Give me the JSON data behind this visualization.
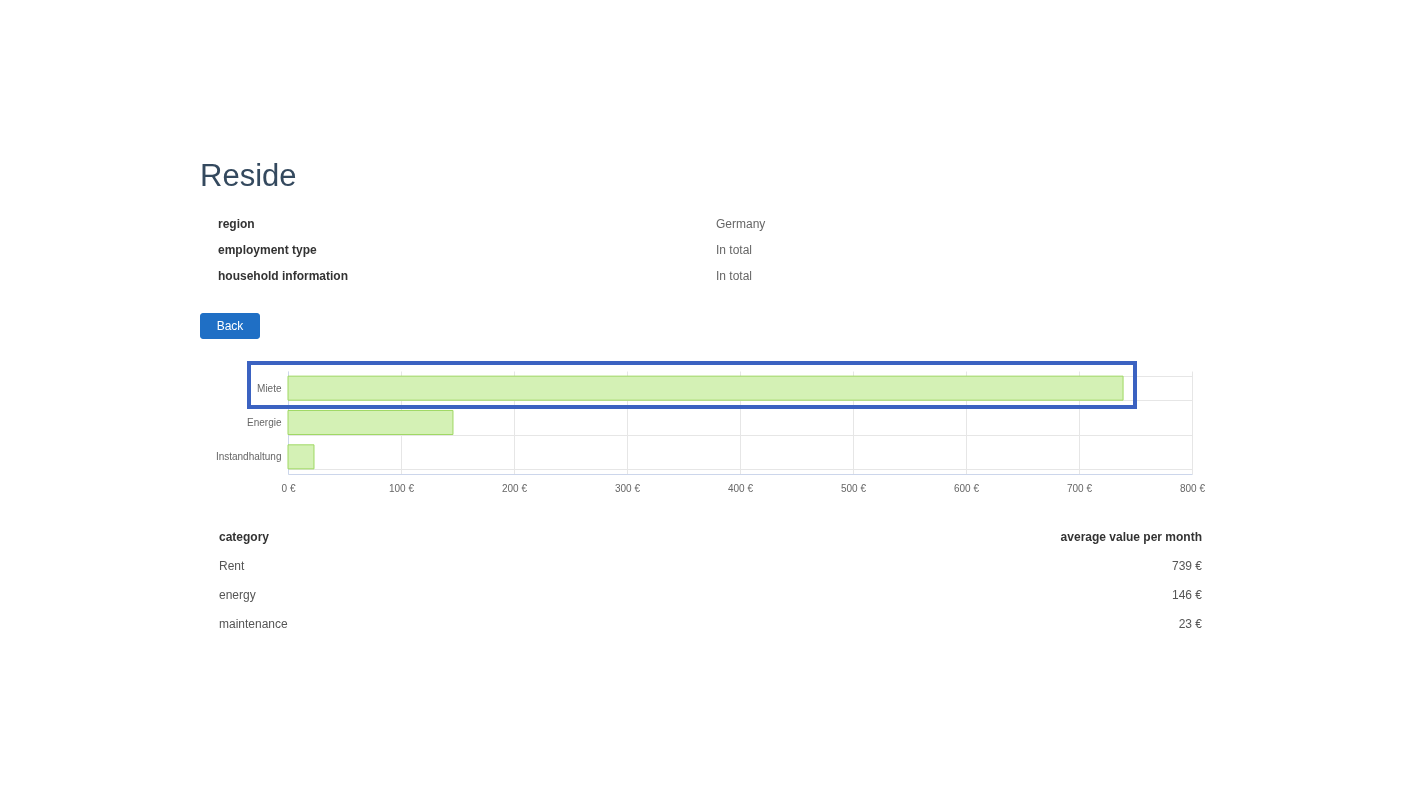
{
  "chart_data": {
    "type": "bar",
    "orientation": "horizontal",
    "title": "Reside",
    "categories": [
      "Miete",
      "Energie",
      "Instandhaltung"
    ],
    "values": [
      739,
      146,
      23
    ],
    "color": "#d4f1b5",
    "xlim": [
      0,
      800
    ],
    "xticks": [
      {
        "value": 0,
        "label": "0 €"
      },
      {
        "value": 100,
        "label": "100 €"
      },
      {
        "value": 200,
        "label": "200 €"
      },
      {
        "value": 300,
        "label": "300 €"
      },
      {
        "value": 400,
        "label": "400 €"
      },
      {
        "value": 500,
        "label": "500 €"
      },
      {
        "value": 600,
        "label": "600 €"
      },
      {
        "value": 700,
        "label": "700 €"
      },
      {
        "value": 800,
        "label": "800 €"
      }
    ],
    "grid": true,
    "annotations": [
      "region",
      "Germany",
      "employment type",
      "In total",
      "household information",
      "In total",
      "Back",
      "category",
      "average value per month",
      "Rent",
      "739 €",
      "energy",
      "146 €",
      "maintenance",
      "23 €"
    ]
  }
}
